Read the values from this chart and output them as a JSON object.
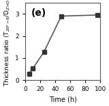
{
  "x": [
    5,
    10,
    25,
    48,
    96
  ],
  "y": [
    0.3,
    0.52,
    1.28,
    2.9,
    2.95
  ],
  "xlabel": "Time (h)",
  "ylabel": "Thickness ratio (T$_{ZIF-8}$/D$_{ZnO}$)",
  "panel_label": "(e)",
  "xlim": [
    0,
    100
  ],
  "ylim": [
    0,
    3.5
  ],
  "xticks": [
    0,
    20,
    40,
    60,
    80,
    100
  ],
  "yticks": [
    0,
    1,
    2,
    3
  ],
  "line_color": "#555555",
  "marker_color": "#333333",
  "marker_style": "s",
  "marker_size": 5,
  "linewidth": 1.2,
  "background_color": "#ffffff",
  "figsize": [
    1.6,
    1.55
  ],
  "dpi": 100
}
